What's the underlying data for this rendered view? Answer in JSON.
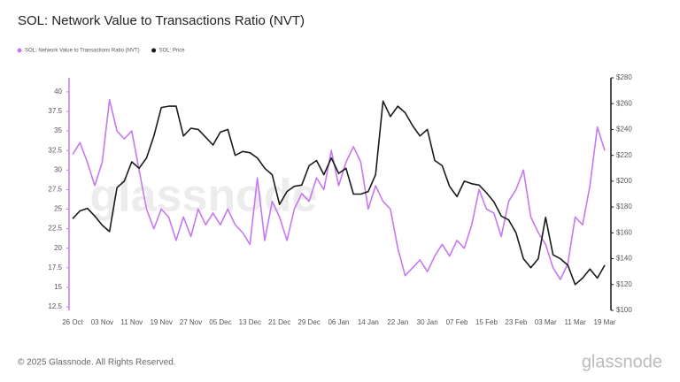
{
  "chart_data": {
    "type": "line",
    "title": "SOL: Network Value to Transactions Ratio (NVT)",
    "categories": [
      "26 Oct",
      null,
      null,
      null,
      "03 Nov",
      null,
      null,
      null,
      "11 Nov",
      null,
      null,
      null,
      "19 Nov",
      null,
      null,
      null,
      "27 Nov",
      null,
      null,
      null,
      "05 Dec",
      null,
      null,
      null,
      "13 Dec",
      null,
      null,
      null,
      "21 Dec",
      null,
      null,
      null,
      "29 Dec",
      null,
      null,
      null,
      "06 Jan",
      null,
      null,
      null,
      "14 Jan",
      null,
      null,
      null,
      "22 Jan",
      null,
      null,
      null,
      "30 Jan",
      null,
      null,
      null,
      "07 Feb",
      null,
      null,
      null,
      "15 Feb",
      null,
      null,
      null,
      "23 Feb",
      null,
      null,
      null,
      "03 Mar",
      null,
      null,
      null,
      "11 Mar",
      null,
      null,
      null,
      "19 Mar"
    ],
    "series": [
      {
        "name": "SOL: Network Value to Transactions Ratio (NVT)",
        "color": "#c678f0",
        "axis": "y",
        "values": [
          32,
          33.5,
          31,
          28,
          31,
          39,
          35,
          34,
          35,
          30,
          25,
          22.5,
          25,
          24,
          21,
          24,
          21.5,
          25,
          23,
          24.5,
          23,
          25,
          23,
          22,
          20.5,
          29,
          21,
          26,
          24,
          21,
          25,
          27,
          26,
          29,
          27.5,
          32.5,
          28,
          31,
          33,
          31,
          25,
          28,
          26,
          25,
          20,
          16.5,
          17.5,
          18.5,
          17,
          19,
          20.5,
          19,
          21,
          20,
          23,
          27.5,
          25,
          24.5,
          21.5,
          26,
          27.5,
          30,
          24,
          22,
          20.5,
          17.5,
          16,
          18,
          24,
          23,
          28,
          35.5,
          32.5
        ]
      },
      {
        "name": "SOL: Price",
        "color": "#1a1a1a",
        "axis": "y2",
        "values": [
          171,
          177,
          179,
          173,
          166,
          161,
          195,
          200,
          215,
          210,
          218,
          235,
          257,
          258,
          258,
          235,
          241,
          240,
          234,
          228,
          238,
          240,
          220,
          223,
          222,
          218,
          210,
          205,
          182,
          192,
          196,
          197,
          212,
          216,
          205,
          218,
          206,
          210,
          190,
          190,
          192,
          205,
          262,
          250,
          258,
          253,
          243,
          235,
          240,
          216,
          212,
          196,
          188,
          200,
          198,
          197,
          191,
          184,
          173,
          170,
          160,
          140,
          133,
          140,
          172,
          143,
          140,
          135,
          120,
          125,
          132,
          125,
          135
        ]
      }
    ],
    "ylim": [
      12.05,
      41.8
    ],
    "yticks": [
      12.5,
      15,
      17.5,
      20,
      22.5,
      25,
      27.5,
      30,
      32.5,
      35,
      37.5,
      40
    ],
    "y2lim": [
      100,
      280
    ],
    "y2ticks": [
      {
        "value": 100,
        "label": "$100"
      },
      {
        "value": 120,
        "label": "$120"
      },
      {
        "value": 140,
        "label": "$140"
      },
      {
        "value": 160,
        "label": "$160"
      },
      {
        "value": 180,
        "label": "$180"
      },
      {
        "value": 200,
        "label": "$200"
      },
      {
        "value": 220,
        "label": "$220"
      },
      {
        "value": 240,
        "label": "$240"
      },
      {
        "value": 260,
        "label": "$260"
      },
      {
        "value": 280,
        "label": "$280"
      }
    ],
    "grid": false,
    "legend": "top-left"
  },
  "watermark": "glassnode",
  "footer": {
    "copyright": "© 2025 Glassnode. All Rights Reserved.",
    "logo": "glassnode"
  }
}
